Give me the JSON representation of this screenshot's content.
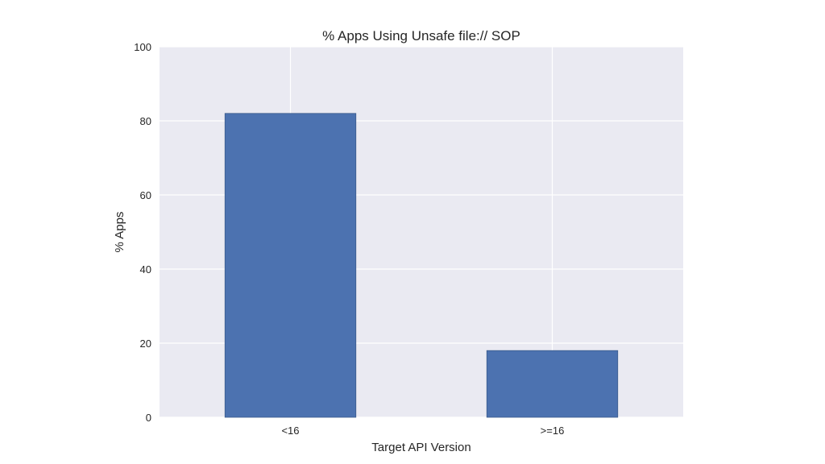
{
  "chart_data": {
    "type": "bar",
    "title": "% Apps Using Unsafe file:// SOP",
    "xlabel": "Target API Version",
    "ylabel": "% Apps",
    "categories": [
      "<16",
      ">=16"
    ],
    "values": [
      82,
      18
    ],
    "ylim": [
      0,
      100
    ],
    "yticks": [
      0,
      20,
      40,
      60,
      80,
      100
    ],
    "grid": true,
    "legend": "none",
    "colors": {
      "bar": "#4c72b0",
      "plot_background": "#eaeaf2",
      "grid": "#ffffff"
    }
  }
}
